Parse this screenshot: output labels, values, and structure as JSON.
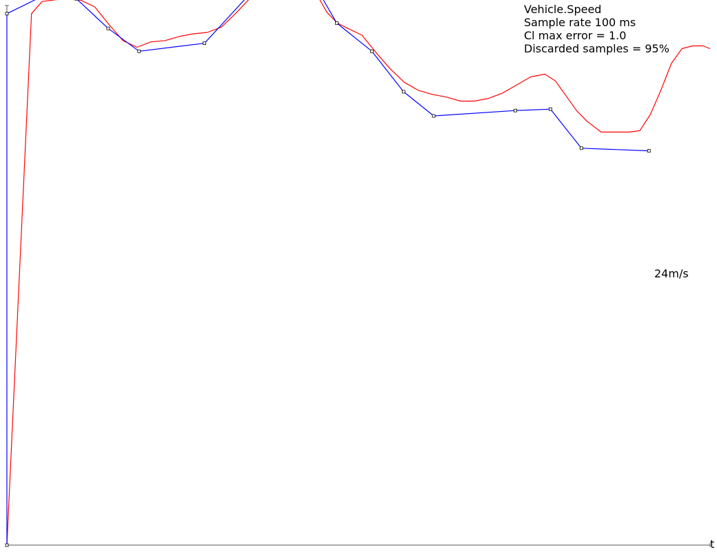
{
  "info": {
    "signal": "Vehicle.Speed",
    "sample_rate": "Sample rate 100 ms",
    "max_error": "Cl max error = 1.0",
    "discarded": "Discarded samples = 95%"
  },
  "annotation": "24m/s",
  "x_axis_label": "t",
  "colors": {
    "raw": "#ff0000",
    "compressed": "#0000ff",
    "axis": "#555555",
    "marker": "#000000"
  },
  "chart_data": {
    "type": "line",
    "xlabel": "t",
    "ylabel": "",
    "xlim": [
      0,
      100
    ],
    "ylim": [
      0,
      40
    ],
    "grid": false,
    "series": [
      {
        "key": "raw",
        "points": [
          [
            0,
            0
          ],
          [
            3.5,
            39.5
          ],
          [
            5,
            40.4
          ],
          [
            8,
            40.6
          ],
          [
            10.5,
            40.5
          ],
          [
            12.5,
            40
          ],
          [
            14.5,
            38.7
          ],
          [
            16.5,
            37.5
          ],
          [
            18.5,
            37
          ],
          [
            20.5,
            37.4
          ],
          [
            22.5,
            37.5
          ],
          [
            24.5,
            37.8
          ],
          [
            26.5,
            38
          ],
          [
            28.5,
            38.1
          ],
          [
            30.5,
            38.5
          ],
          [
            32.5,
            39.5
          ],
          [
            34.5,
            40.6
          ],
          [
            36.5,
            41.5
          ],
          [
            38.5,
            42
          ],
          [
            40.5,
            42
          ],
          [
            42.5,
            41.8
          ],
          [
            44,
            41
          ],
          [
            45.5,
            39.6
          ],
          [
            47,
            38.8
          ],
          [
            48.5,
            38.4
          ],
          [
            50.5,
            37.9
          ],
          [
            52.5,
            36.6
          ],
          [
            54.5,
            35.4
          ],
          [
            56.5,
            34.4
          ],
          [
            58.5,
            33.8
          ],
          [
            60.5,
            33.5
          ],
          [
            62.5,
            33.3
          ],
          [
            64.5,
            33
          ],
          [
            66.5,
            33
          ],
          [
            68.5,
            33.2
          ],
          [
            70.5,
            33.6
          ],
          [
            72.5,
            34.2
          ],
          [
            74.5,
            34.8
          ],
          [
            76.5,
            35
          ],
          [
            78,
            34.5
          ],
          [
            79.5,
            33.4
          ],
          [
            81,
            32.3
          ],
          [
            82.5,
            31.5
          ],
          [
            84.5,
            30.7
          ],
          [
            86.5,
            30.7
          ],
          [
            88.5,
            30.7
          ],
          [
            90,
            30.8
          ],
          [
            91.5,
            32
          ],
          [
            93,
            33.8
          ],
          [
            94.5,
            35.8
          ],
          [
            96,
            36.9
          ],
          [
            97.5,
            37.1
          ],
          [
            99,
            37.1
          ],
          [
            100,
            36.9
          ]
        ]
      },
      {
        "key": "compressed",
        "points": [
          [
            0,
            0
          ],
          [
            0,
            39.5
          ],
          [
            4.7,
            40.7
          ],
          [
            9.9,
            40.6
          ],
          [
            14.4,
            38.4
          ],
          [
            18.8,
            36.7
          ],
          [
            28.1,
            37.3
          ],
          [
            38.3,
            43.1
          ],
          [
            42.6,
            42.7
          ],
          [
            46.9,
            38.8
          ],
          [
            51.9,
            36.7
          ],
          [
            56.4,
            33.7
          ],
          [
            60.7,
            31.9
          ],
          [
            72.3,
            32.3
          ],
          [
            77.3,
            32.4
          ],
          [
            81.7,
            29.5
          ],
          [
            91.3,
            29.3
          ]
        ]
      }
    ]
  }
}
